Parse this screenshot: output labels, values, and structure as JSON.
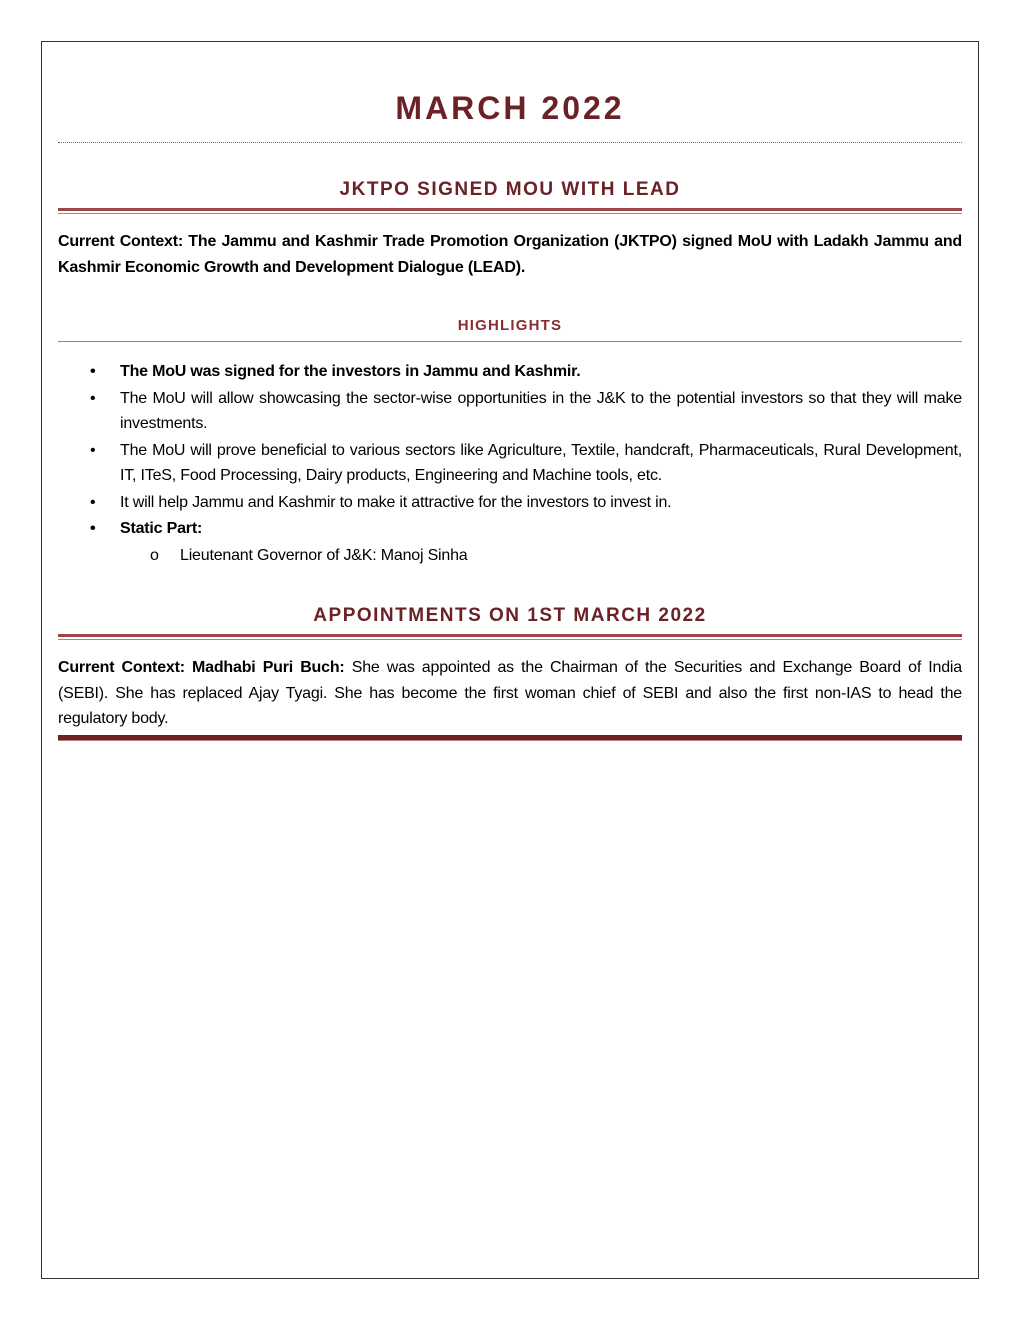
{
  "title": "MARCH 2022",
  "section1": {
    "heading": "JKTPO SIGNED MOU WITH LEAD",
    "context": "Current Context: The Jammu and Kashmir Trade Promotion Organization (JKTPO) signed MoU with Ladakh Jammu and Kashmir Economic Growth and Development Dialogue (LEAD).",
    "highlights_heading": "HIGHLIGHTS",
    "bullets": [
      "The MoU was signed for the investors in Jammu and Kashmir.",
      "The MoU will allow showcasing the sector-wise opportunities in the J&K to the potential investors so that they will make investments.",
      "The MoU will prove beneficial to various sectors like Agriculture, Textile, handcraft, Pharmaceuticals, Rural Development, IT, ITeS, Food Processing, Dairy products, Engineering and Machine tools, etc.",
      "It will help Jammu and Kashmir to make it attractive for the investors to invest in.",
      "Static Part:"
    ],
    "sub_bullets": [
      "Lieutenant Governor of J&K: Manoj Sinha"
    ]
  },
  "section2": {
    "heading": "APPOINTMENTS ON 1ST MARCH 2022",
    "context_label": "Current Context:",
    "person": "Madhabi Puri Buch:",
    "text": "She was appointed as the Chairman of the Securities and Exchange Board of India (SEBI). She has replaced Ajay Tyagi. She has become the first woman chief of SEBI and also the first non-IAS to head the regulatory body."
  },
  "colors": {
    "heading": "#6b2226",
    "rule": "#a0464a"
  }
}
